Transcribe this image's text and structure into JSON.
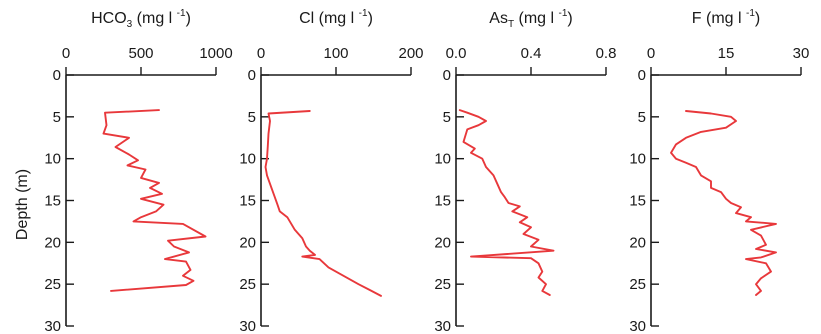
{
  "chart_data": {
    "type": "line",
    "ylabel": "Depth (m)",
    "ylim": [
      0,
      30
    ],
    "y_inverted": true,
    "y_ticks": [
      0,
      5,
      10,
      15,
      20,
      25,
      30
    ],
    "y_tick_labels": [
      "0",
      "5",
      "10",
      "15",
      "20",
      "25",
      "30"
    ],
    "line_color": "#e8383b",
    "panels": [
      {
        "title_base": "HCO",
        "title_sub": "3",
        "title_unit": "(mg l",
        "title_sup": "-1",
        "title_close": ")",
        "xlim": [
          0,
          1000
        ],
        "x_ticks": [
          0,
          500,
          1000
        ],
        "x_tick_labels": [
          "0",
          "500",
          "1000"
        ],
        "series": [
          {
            "points": [
              [
                620,
                4.2
              ],
              [
                260,
                4.5
              ],
              [
                270,
                6.0
              ],
              [
                250,
                7.0
              ],
              [
                420,
                7.5
              ],
              [
                330,
                8.6
              ],
              [
                420,
                9.5
              ],
              [
                480,
                10.2
              ],
              [
                410,
                10.8
              ],
              [
                530,
                11.3
              ],
              [
                500,
                12.3
              ],
              [
                620,
                12.9
              ],
              [
                560,
                13.5
              ],
              [
                640,
                14.2
              ],
              [
                500,
                14.8
              ],
              [
                650,
                15.5
              ],
              [
                600,
                16.3
              ],
              [
                500,
                17.0
              ],
              [
                450,
                17.5
              ],
              [
                780,
                17.8
              ],
              [
                930,
                19.3
              ],
              [
                680,
                19.8
              ],
              [
                720,
                20.5
              ],
              [
                820,
                21.2
              ],
              [
                660,
                22.0
              ],
              [
                800,
                22.3
              ],
              [
                830,
                23.3
              ],
              [
                780,
                24.0
              ],
              [
                850,
                24.6
              ],
              [
                800,
                25.1
              ],
              [
                300,
                25.8
              ]
            ]
          }
        ]
      },
      {
        "title_base": "Cl",
        "title_sub": "",
        "title_unit": "(mg l",
        "title_sup": "-1",
        "title_close": ")",
        "xlim": [
          0,
          200
        ],
        "x_ticks": [
          0,
          100,
          200
        ],
        "x_tick_labels": [
          "0",
          "100",
          "200"
        ],
        "series": [
          {
            "points": [
              [
                65,
                4.3
              ],
              [
                10,
                4.6
              ],
              [
                12,
                5.5
              ],
              [
                10,
                7.0
              ],
              [
                9,
                8.5
              ],
              [
                8,
                10.0
              ],
              [
                6,
                11.0
              ],
              [
                8,
                12.0
              ],
              [
                12,
                13.0
              ],
              [
                18,
                14.5
              ],
              [
                22,
                15.5
              ],
              [
                25,
                16.3
              ],
              [
                35,
                17.0
              ],
              [
                45,
                18.5
              ],
              [
                55,
                19.5
              ],
              [
                60,
                20.5
              ],
              [
                65,
                21.0
              ],
              [
                72,
                21.5
              ],
              [
                55,
                21.7
              ],
              [
                78,
                22.0
              ],
              [
                90,
                23.0
              ],
              [
                110,
                24.0
              ],
              [
                130,
                25.0
              ],
              [
                145,
                25.7
              ],
              [
                160,
                26.4
              ]
            ]
          }
        ]
      },
      {
        "title_base": "As",
        "title_sub": "T",
        "title_unit": "(mg l",
        "title_sup": "-1",
        "title_close": ")",
        "xlim": [
          0.0,
          0.8
        ],
        "x_ticks": [
          0.0,
          0.4,
          0.8
        ],
        "x_tick_labels": [
          "0.0",
          "0.4",
          "0.8"
        ],
        "series": [
          {
            "points": [
              [
                0.02,
                4.2
              ],
              [
                0.06,
                4.5
              ],
              [
                0.12,
                5.0
              ],
              [
                0.16,
                5.5
              ],
              [
                0.12,
                6.0
              ],
              [
                0.06,
                6.5
              ],
              [
                0.04,
                8.0
              ],
              [
                0.1,
                8.8
              ],
              [
                0.08,
                9.3
              ],
              [
                0.14,
                10.0
              ],
              [
                0.16,
                11.0
              ],
              [
                0.2,
                12.0
              ],
              [
                0.22,
                13.0
              ],
              [
                0.24,
                14.0
              ],
              [
                0.26,
                14.6
              ],
              [
                0.28,
                15.3
              ],
              [
                0.34,
                15.7
              ],
              [
                0.3,
                16.3
              ],
              [
                0.38,
                17.0
              ],
              [
                0.34,
                17.6
              ],
              [
                0.4,
                18.2
              ],
              [
                0.36,
                19.0
              ],
              [
                0.44,
                19.7
              ],
              [
                0.4,
                20.5
              ],
              [
                0.52,
                21.0
              ],
              [
                0.08,
                21.7
              ],
              [
                0.4,
                21.9
              ],
              [
                0.44,
                22.5
              ],
              [
                0.46,
                23.5
              ],
              [
                0.44,
                24.2
              ],
              [
                0.48,
                25.0
              ],
              [
                0.46,
                25.8
              ],
              [
                0.5,
                26.3
              ]
            ]
          }
        ]
      },
      {
        "title_base": "F",
        "title_sub": "",
        "title_unit": "(mg l",
        "title_sup": "-1",
        "title_close": ")",
        "xlim": [
          0,
          30
        ],
        "x_ticks": [
          0,
          15,
          30
        ],
        "x_tick_labels": [
          "0",
          "15",
          "30"
        ],
        "series": [
          {
            "points": [
              [
                7,
                4.3
              ],
              [
                12,
                4.6
              ],
              [
                16,
                5.0
              ],
              [
                17,
                5.5
              ],
              [
                15,
                6.3
              ],
              [
                10,
                6.8
              ],
              [
                7,
                7.5
              ],
              [
                5,
                8.3
              ],
              [
                4,
                9.3
              ],
              [
                5,
                10.0
              ],
              [
                7,
                10.5
              ],
              [
                9,
                11.0
              ],
              [
                10,
                12.0
              ],
              [
                12,
                12.7
              ],
              [
                12,
                13.5
              ],
              [
                14,
                14.0
              ],
              [
                15,
                14.8
              ],
              [
                16,
                15.3
              ],
              [
                18,
                15.8
              ],
              [
                17,
                16.5
              ],
              [
                20,
                17.0
              ],
              [
                19,
                17.5
              ],
              [
                25,
                17.8
              ],
              [
                20,
                18.5
              ],
              [
                22,
                19.2
              ],
              [
                23,
                20.3
              ],
              [
                21,
                20.8
              ],
              [
                25,
                21.2
              ],
              [
                22,
                21.8
              ],
              [
                19,
                22.0
              ],
              [
                23,
                22.5
              ],
              [
                24,
                23.5
              ],
              [
                22,
                24.3
              ],
              [
                21,
                25.0
              ],
              [
                22,
                25.8
              ],
              [
                21,
                26.3
              ]
            ]
          }
        ]
      }
    ]
  }
}
